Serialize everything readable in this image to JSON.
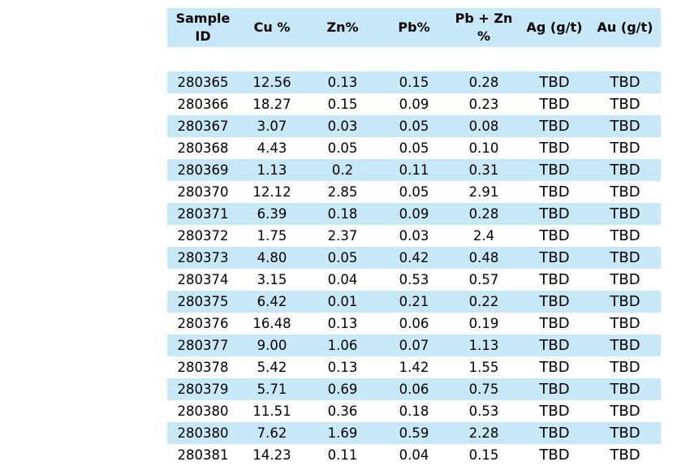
{
  "table": {
    "headers": [
      [
        "Sample",
        "ID"
      ],
      [
        "Cu %"
      ],
      [
        "Zn%"
      ],
      [
        "Pb%"
      ],
      [
        "Pb + Zn",
        "%"
      ],
      [
        "Ag (g/t)"
      ],
      [
        "Au (g/t)"
      ]
    ],
    "rows": [
      [
        "280365",
        "12.56",
        "0.13",
        "0.15",
        "0.28",
        "TBD",
        "TBD"
      ],
      [
        "280366",
        "18.27",
        "0.15",
        "0.09",
        "0.23",
        "TBD",
        "TBD"
      ],
      [
        "280367",
        "3.07",
        "0.03",
        "0.05",
        "0.08",
        "TBD",
        "TBD"
      ],
      [
        "280368",
        "4.43",
        "0.05",
        "0.05",
        "0.10",
        "TBD",
        "TBD"
      ],
      [
        "280369",
        "1.13",
        "0.2",
        "0.11",
        "0.31",
        "TBD",
        "TBD"
      ],
      [
        "280370",
        "12.12",
        "2.85",
        "0.05",
        "2.91",
        "TBD",
        "TBD"
      ],
      [
        "280371",
        "6.39",
        "0.18",
        "0.09",
        "0.28",
        "TBD",
        "TBD"
      ],
      [
        "280372",
        "1.75",
        "2.37",
        "0.03",
        "2.4",
        "TBD",
        "TBD"
      ],
      [
        "280373",
        "4.80",
        "0.05",
        "0.42",
        "0.48",
        "TBD",
        "TBD"
      ],
      [
        "280374",
        "3.15",
        "0.04",
        "0.53",
        "0.57",
        "TBD",
        "TBD"
      ],
      [
        "280375",
        "6.42",
        "0.01",
        "0.21",
        "0.22",
        "TBD",
        "TBD"
      ],
      [
        "280376",
        "16.48",
        "0.13",
        "0.06",
        "0.19",
        "TBD",
        "TBD"
      ],
      [
        "280377",
        "9.00",
        "1.06",
        "0.07",
        "1.13",
        "TBD",
        "TBD"
      ],
      [
        "280378",
        "5.42",
        "0.13",
        "1.42",
        "1.55",
        "TBD",
        "TBD"
      ],
      [
        "280379",
        "5.71",
        "0.69",
        "0.06",
        "0.75",
        "TBD",
        "TBD"
      ],
      [
        "280380",
        "11.51",
        "0.36",
        "0.18",
        "0.53",
        "TBD",
        "TBD"
      ],
      [
        "280380",
        "7.62",
        "1.69",
        "0.59",
        "2.28",
        "TBD",
        "TBD"
      ],
      [
        "280381",
        "14.23",
        "0.11",
        "0.04",
        "0.15",
        "TBD",
        "TBD"
      ]
    ]
  },
  "colors": {
    "row_shade": "#c6e8f7",
    "background": "#ffffff"
  }
}
